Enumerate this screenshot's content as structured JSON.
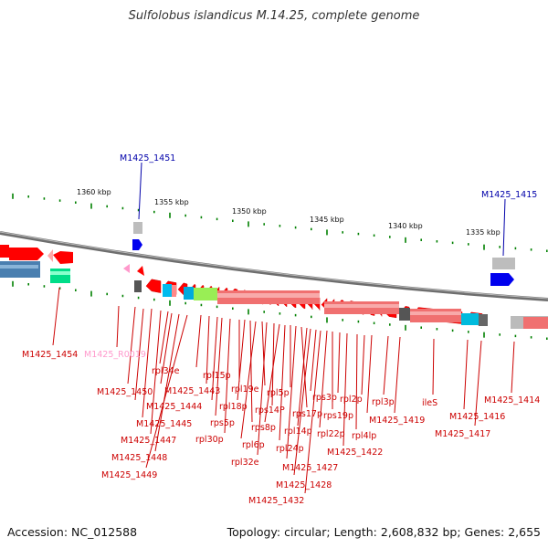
{
  "title": "Sulfolobus islandicus M.14.25, complete genome",
  "footer": {
    "accession": "Accession: NC_012588",
    "summary": "Topology: circular; Length: 2,608,832 bp; Genes: 2,655"
  },
  "colors": {
    "protein_coding": "#ff0000",
    "pseudogene": "#ff99cc",
    "rna": "#ff99cc",
    "highlight_blue": "#0000ee",
    "backbone": "#777777",
    "tick": "#008000",
    "label": "#cc0000",
    "selected_label": "#0000aa"
  },
  "scale_labels": [
    "1360 kbp",
    "1355 kbp",
    "1350 kbp",
    "1345 kbp",
    "1340 kbp",
    "1335 kbp"
  ],
  "top_labels": [
    "M1425_1451",
    "M1425_1415"
  ],
  "gene_labels": [
    "M1425_1454",
    "M1425_R0019",
    "M1425_1450",
    "rpl34e",
    "M1425_1443",
    "M1425_1444",
    "M1425_1445",
    "M1425_1447",
    "M1425_1448",
    "M1425_1449",
    "rpl15p",
    "rpl19e",
    "rpl18p",
    "rps5p",
    "rpl30p",
    "rps14P",
    "rps8p",
    "rpl6p",
    "rpl32e",
    "rpl5p",
    "rps17p",
    "rpl14p",
    "rpl24p",
    "rps3p",
    "rps19p",
    "rpl22p",
    "rpl2p",
    "rpl4lp",
    "M1425_1422",
    "M1425_1427",
    "M1425_1428",
    "M1425_1432",
    "rpl3p",
    "M1425_1419",
    "ileS",
    "M1425_1414",
    "M1425_1416",
    "M1425_1417"
  ]
}
